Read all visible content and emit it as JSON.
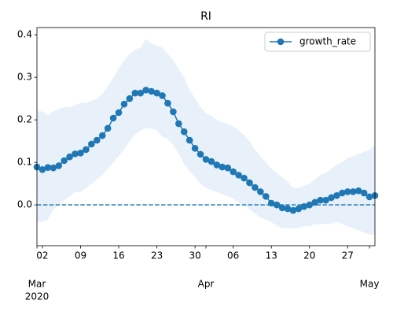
{
  "chart_data": {
    "type": "line",
    "title": "RI",
    "x": [
      "2020-03-01",
      "2020-03-02",
      "2020-03-03",
      "2020-03-04",
      "2020-03-05",
      "2020-03-06",
      "2020-03-07",
      "2020-03-08",
      "2020-03-09",
      "2020-03-10",
      "2020-03-11",
      "2020-03-12",
      "2020-03-13",
      "2020-03-14",
      "2020-03-15",
      "2020-03-16",
      "2020-03-17",
      "2020-03-18",
      "2020-03-19",
      "2020-03-20",
      "2020-03-21",
      "2020-03-22",
      "2020-03-23",
      "2020-03-24",
      "2020-03-25",
      "2020-03-26",
      "2020-03-27",
      "2020-03-28",
      "2020-03-29",
      "2020-03-30",
      "2020-03-31",
      "2020-04-01",
      "2020-04-02",
      "2020-04-03",
      "2020-04-04",
      "2020-04-05",
      "2020-04-06",
      "2020-04-07",
      "2020-04-08",
      "2020-04-09",
      "2020-04-10",
      "2020-04-11",
      "2020-04-12",
      "2020-04-13",
      "2020-04-14",
      "2020-04-15",
      "2020-04-16",
      "2020-04-17",
      "2020-04-18",
      "2020-04-19",
      "2020-04-20",
      "2020-04-21",
      "2020-04-22",
      "2020-04-23",
      "2020-04-24",
      "2020-04-25",
      "2020-04-26",
      "2020-04-27",
      "2020-04-28",
      "2020-04-29",
      "2020-04-30",
      "2020-05-01",
      "2020-05-02"
    ],
    "series": [
      {
        "name": "growth_rate",
        "color": "#1f77b4",
        "values": [
          0.089,
          0.083,
          0.088,
          0.087,
          0.092,
          0.104,
          0.113,
          0.12,
          0.122,
          0.13,
          0.143,
          0.152,
          0.163,
          0.18,
          0.204,
          0.217,
          0.237,
          0.25,
          0.263,
          0.263,
          0.27,
          0.267,
          0.263,
          0.257,
          0.239,
          0.219,
          0.191,
          0.172,
          0.152,
          0.133,
          0.119,
          0.107,
          0.102,
          0.094,
          0.089,
          0.087,
          0.078,
          0.07,
          0.063,
          0.052,
          0.041,
          0.031,
          0.02,
          0.004,
          0.0,
          -0.007,
          -0.009,
          -0.013,
          -0.009,
          -0.004,
          0.0,
          0.006,
          0.011,
          0.011,
          0.017,
          0.022,
          0.028,
          0.031,
          0.031,
          0.033,
          0.028,
          0.019,
          0.022
        ]
      }
    ],
    "band": {
      "color": "#e8f1fa",
      "upper": [
        0.22,
        0.22,
        0.21,
        0.22,
        0.225,
        0.23,
        0.23,
        0.235,
        0.24,
        0.24,
        0.245,
        0.25,
        0.26,
        0.28,
        0.3,
        0.32,
        0.34,
        0.355,
        0.365,
        0.37,
        0.39,
        0.38,
        0.375,
        0.37,
        0.355,
        0.34,
        0.32,
        0.3,
        0.27,
        0.25,
        0.23,
        0.215,
        0.21,
        0.2,
        0.195,
        0.19,
        0.185,
        0.175,
        0.165,
        0.15,
        0.13,
        0.115,
        0.1,
        0.085,
        0.075,
        0.065,
        0.055,
        0.04,
        0.04,
        0.045,
        0.05,
        0.06,
        0.07,
        0.075,
        0.085,
        0.095,
        0.1,
        0.11,
        0.115,
        0.12,
        0.125,
        0.13,
        0.14
      ],
      "lower": [
        -0.04,
        -0.04,
        -0.035,
        -0.01,
        0.0,
        0.01,
        0.02,
        0.03,
        0.03,
        0.04,
        0.05,
        0.06,
        0.07,
        0.085,
        0.1,
        0.115,
        0.13,
        0.15,
        0.165,
        0.175,
        0.18,
        0.18,
        0.175,
        0.16,
        0.155,
        0.14,
        0.12,
        0.095,
        0.08,
        0.065,
        0.05,
        0.04,
        0.035,
        0.03,
        0.025,
        0.02,
        0.015,
        0.005,
        0.0,
        -0.01,
        -0.02,
        -0.03,
        -0.035,
        -0.04,
        -0.05,
        -0.055,
        -0.055,
        -0.055,
        -0.055,
        -0.05,
        -0.05,
        -0.045,
        -0.045,
        -0.045,
        -0.045,
        -0.04,
        -0.045,
        -0.05,
        -0.055,
        -0.06,
        -0.065,
        -0.07,
        -0.07
      ]
    },
    "hline": 0,
    "xlim": [
      "2020-03-01",
      "2020-05-02"
    ],
    "xticks": [
      {
        "value": "2020-03-02",
        "label": "02"
      },
      {
        "value": "2020-03-09",
        "label": "09"
      },
      {
        "value": "2020-03-16",
        "label": "16"
      },
      {
        "value": "2020-03-23",
        "label": "23"
      },
      {
        "value": "2020-03-30",
        "label": "30"
      },
      {
        "value": "2020-04-06",
        "label": "06"
      },
      {
        "value": "2020-04-13",
        "label": "13"
      },
      {
        "value": "2020-04-20",
        "label": "20"
      },
      {
        "value": "2020-04-27",
        "label": "27"
      }
    ],
    "month_labels": [
      {
        "value": "2020-03-01",
        "label": "Mar",
        "year": "2020"
      },
      {
        "value": "2020-04-01",
        "label": "Apr"
      },
      {
        "value": "2020-05-01",
        "label": "May"
      }
    ],
    "ylim": [
      -0.096,
      0.417
    ],
    "yticks": [
      {
        "value": 0,
        "label": "0.0"
      },
      {
        "value": 0.1,
        "label": "0.1"
      },
      {
        "value": 0.2,
        "label": "0.2"
      },
      {
        "value": 0.3,
        "label": "0.3"
      },
      {
        "value": 0.4,
        "label": "0.4"
      }
    ],
    "legend": "upper right"
  }
}
